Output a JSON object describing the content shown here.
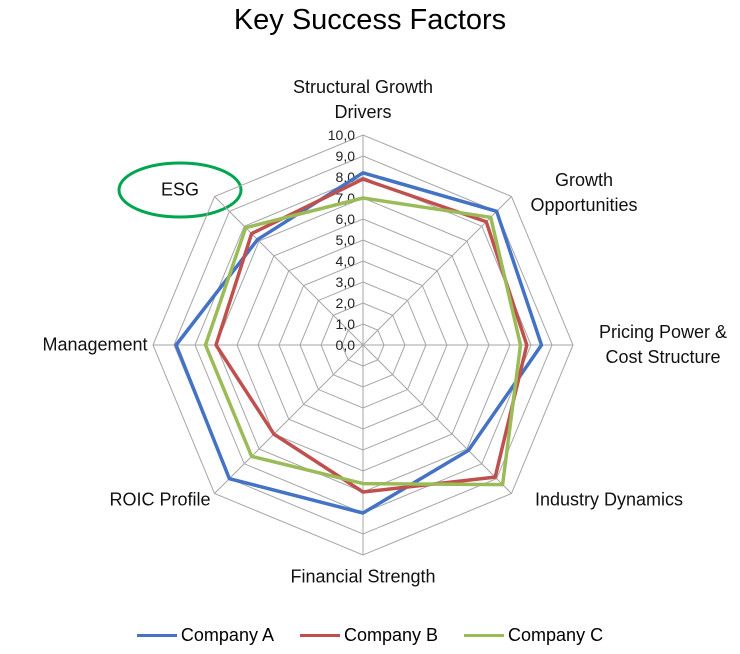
{
  "chart_data": {
    "type": "radar",
    "title": "Key Success Factors",
    "categories": [
      "Structural Growth Drivers",
      "Growth Opportunities",
      "Pricing Power & Cost Structure",
      "Industry Dynamics",
      "Financial Strength",
      "ROIC Profile",
      "Management",
      "ESG"
    ],
    "series": [
      {
        "name": "Company A",
        "color": "#4472c4",
        "values": [
          8.2,
          9.0,
          8.5,
          7.1,
          8.0,
          9.0,
          8.9,
          7.1
        ]
      },
      {
        "name": "Company B",
        "color": "#c0504d",
        "values": [
          7.9,
          8.3,
          7.8,
          8.9,
          7.0,
          6.0,
          7.0,
          7.5
        ]
      },
      {
        "name": "Company C",
        "color": "#9bbb59",
        "values": [
          7.0,
          8.6,
          7.5,
          9.4,
          6.6,
          7.5,
          7.5,
          7.9
        ]
      }
    ],
    "ylim": [
      0,
      10
    ],
    "yticks": [
      {
        "value": 0,
        "label": "0,0"
      },
      {
        "value": 1,
        "label": "1,0"
      },
      {
        "value": 2,
        "label": "2,0"
      },
      {
        "value": 3,
        "label": "3,0"
      },
      {
        "value": 4,
        "label": "4,0"
      },
      {
        "value": 5,
        "label": "5,0"
      },
      {
        "value": 6,
        "label": "6,0"
      },
      {
        "value": 7,
        "label": "7,0"
      },
      {
        "value": 8,
        "label": "8,0"
      },
      {
        "value": 9,
        "label": "9,0"
      },
      {
        "value": 10,
        "label": "10,0"
      }
    ],
    "grid": true
  }
}
